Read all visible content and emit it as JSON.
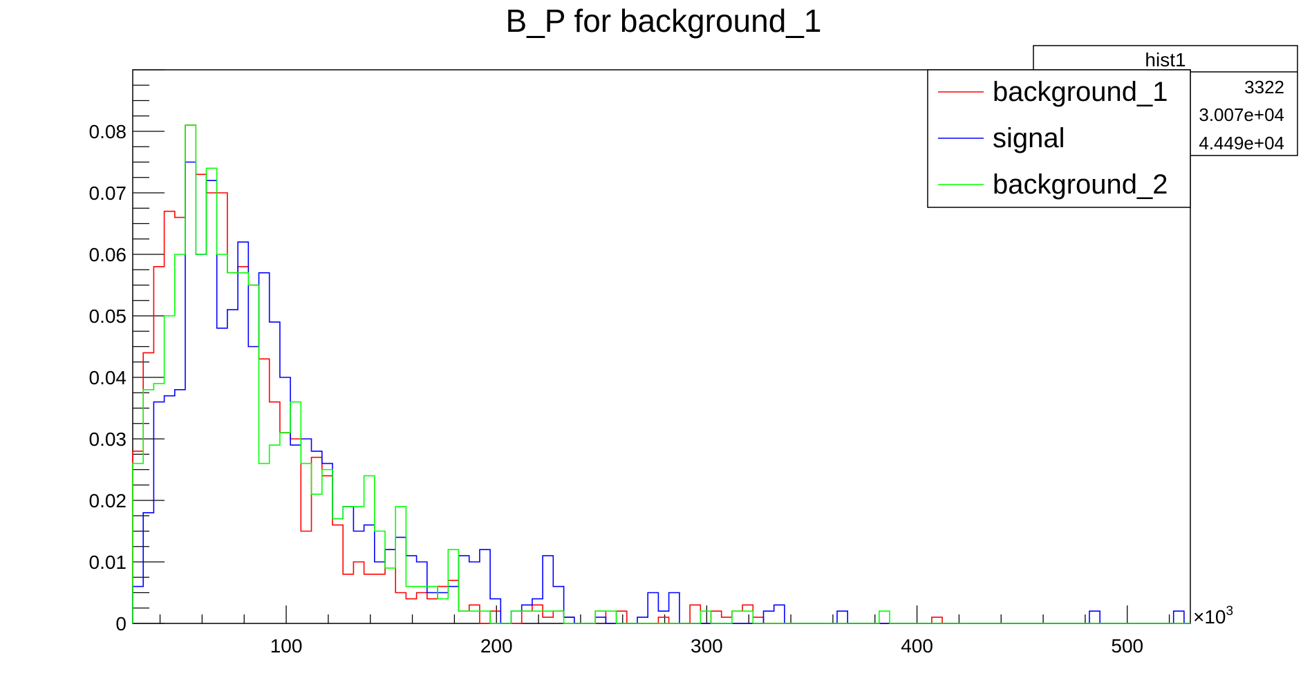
{
  "chart_data": {
    "type": "histogram",
    "title": "B_P for background_1",
    "xlabel": "",
    "ylabel": "",
    "x_exponent_label": "×10",
    "x_exponent_power": "3",
    "xlim": [
      27,
      530
    ],
    "ylim": [
      0,
      0.09
    ],
    "bin_width": 5,
    "x_ticks": [
      100,
      200,
      300,
      400,
      500
    ],
    "y_ticks": [
      0,
      0.01,
      0.02,
      0.03,
      0.04,
      0.05,
      0.06,
      0.07,
      0.08
    ],
    "y_tick_labels": [
      "0",
      "0.01",
      "0.02",
      "0.03",
      "0.04",
      "0.05",
      "0.06",
      "0.07",
      "0.08"
    ],
    "series": [
      {
        "name": "background_1",
        "color": "#ff0000",
        "steps": [
          [
            27,
            0.028
          ],
          [
            32,
            0.044
          ],
          [
            37,
            0.058
          ],
          [
            42,
            0.067
          ],
          [
            47,
            0.066
          ],
          [
            52,
            0.081
          ],
          [
            57,
            0.073
          ],
          [
            62,
            0.07
          ],
          [
            67,
            0.07
          ],
          [
            72,
            0.057
          ],
          [
            77,
            0.058
          ],
          [
            82,
            0.055
          ],
          [
            87,
            0.043
          ],
          [
            92,
            0.036
          ],
          [
            97,
            0.031
          ],
          [
            102,
            0.03
          ],
          [
            107,
            0.015
          ],
          [
            112,
            0.027
          ],
          [
            117,
            0.024
          ],
          [
            122,
            0.016
          ],
          [
            127,
            0.008
          ],
          [
            132,
            0.01
          ],
          [
            137,
            0.008
          ],
          [
            142,
            0.008
          ],
          [
            147,
            0.012
          ],
          [
            152,
            0.005
          ],
          [
            157,
            0.004
          ],
          [
            162,
            0.005
          ],
          [
            167,
            0.004
          ],
          [
            172,
            0.006
          ],
          [
            177,
            0.007
          ],
          [
            182,
            0.002
          ],
          [
            187,
            0.003
          ],
          [
            192,
            0
          ],
          [
            197,
            0.002
          ],
          [
            202,
            0
          ],
          [
            207,
            0
          ],
          [
            212,
            0.002
          ],
          [
            217,
            0.003
          ],
          [
            222,
            0.001
          ],
          [
            227,
            0.002
          ],
          [
            232,
            0.001
          ],
          [
            237,
            0
          ],
          [
            242,
            0
          ],
          [
            247,
            0.002
          ],
          [
            252,
            0
          ],
          [
            257,
            0.002
          ],
          [
            262,
            0
          ],
          [
            267,
            0
          ],
          [
            272,
            0
          ],
          [
            277,
            0.001
          ],
          [
            282,
            0
          ],
          [
            287,
            0
          ],
          [
            292,
            0.003
          ],
          [
            297,
            0
          ],
          [
            302,
            0.002
          ],
          [
            307,
            0.001
          ],
          [
            312,
            0.002
          ],
          [
            317,
            0.003
          ],
          [
            322,
            0.001
          ],
          [
            327,
            0
          ],
          [
            332,
            0
          ],
          [
            407,
            0.001
          ],
          [
            412,
            0
          ],
          [
            530,
            0
          ]
        ]
      },
      {
        "name": "signal",
        "color": "#0000ff",
        "steps": [
          [
            27,
            0.006
          ],
          [
            32,
            0.018
          ],
          [
            37,
            0.036
          ],
          [
            42,
            0.037
          ],
          [
            47,
            0.038
          ],
          [
            52,
            0.075
          ],
          [
            57,
            0.06
          ],
          [
            62,
            0.072
          ],
          [
            67,
            0.048
          ],
          [
            72,
            0.051
          ],
          [
            77,
            0.062
          ],
          [
            82,
            0.045
          ],
          [
            87,
            0.057
          ],
          [
            92,
            0.049
          ],
          [
            97,
            0.04
          ],
          [
            102,
            0.029
          ],
          [
            107,
            0.03
          ],
          [
            112,
            0.028
          ],
          [
            117,
            0.026
          ],
          [
            122,
            0.017
          ],
          [
            127,
            0.019
          ],
          [
            132,
            0.015
          ],
          [
            137,
            0.016
          ],
          [
            142,
            0.01
          ],
          [
            147,
            0.012
          ],
          [
            152,
            0.014
          ],
          [
            157,
            0.011
          ],
          [
            162,
            0.01
          ],
          [
            167,
            0.005
          ],
          [
            172,
            0.005
          ],
          [
            177,
            0.006
          ],
          [
            182,
            0.011
          ],
          [
            187,
            0.01
          ],
          [
            192,
            0.012
          ],
          [
            197,
            0.004
          ],
          [
            202,
            0
          ],
          [
            207,
            0.002
          ],
          [
            212,
            0.003
          ],
          [
            217,
            0.004
          ],
          [
            222,
            0.011
          ],
          [
            227,
            0.006
          ],
          [
            232,
            0.001
          ],
          [
            237,
            0
          ],
          [
            242,
            0
          ],
          [
            247,
            0.001
          ],
          [
            252,
            0
          ],
          [
            257,
            0
          ],
          [
            262,
            0
          ],
          [
            267,
            0.001
          ],
          [
            272,
            0.005
          ],
          [
            277,
            0.002
          ],
          [
            282,
            0.005
          ],
          [
            287,
            0
          ],
          [
            292,
            0
          ],
          [
            297,
            0
          ],
          [
            302,
            0
          ],
          [
            307,
            0
          ],
          [
            312,
            0
          ],
          [
            317,
            0
          ],
          [
            322,
            0
          ],
          [
            327,
            0.002
          ],
          [
            332,
            0.003
          ],
          [
            337,
            0
          ],
          [
            362,
            0.002
          ],
          [
            367,
            0
          ],
          [
            482,
            0.002
          ],
          [
            487,
            0
          ],
          [
            522,
            0.002
          ],
          [
            527,
            0
          ],
          [
            530,
            0
          ]
        ]
      },
      {
        "name": "background_2",
        "color": "#00ff00",
        "steps": [
          [
            27,
            0.026
          ],
          [
            32,
            0.038
          ],
          [
            37,
            0.039
          ],
          [
            42,
            0.05
          ],
          [
            47,
            0.06
          ],
          [
            52,
            0.081
          ],
          [
            57,
            0.06
          ],
          [
            62,
            0.074
          ],
          [
            67,
            0.06
          ],
          [
            72,
            0.057
          ],
          [
            77,
            0.057
          ],
          [
            82,
            0.055
          ],
          [
            87,
            0.026
          ],
          [
            92,
            0.029
          ],
          [
            97,
            0.031
          ],
          [
            102,
            0.036
          ],
          [
            107,
            0.026
          ],
          [
            112,
            0.021
          ],
          [
            117,
            0.025
          ],
          [
            122,
            0.017
          ],
          [
            127,
            0.019
          ],
          [
            132,
            0.019
          ],
          [
            137,
            0.024
          ],
          [
            142,
            0.015
          ],
          [
            147,
            0.009
          ],
          [
            152,
            0.019
          ],
          [
            157,
            0.006
          ],
          [
            162,
            0.006
          ],
          [
            167,
            0.006
          ],
          [
            172,
            0.004
          ],
          [
            177,
            0.012
          ],
          [
            182,
            0.002
          ],
          [
            187,
            0.002
          ],
          [
            192,
            0.002
          ],
          [
            197,
            0
          ],
          [
            202,
            0
          ],
          [
            207,
            0.002
          ],
          [
            212,
            0.002
          ],
          [
            217,
            0.002
          ],
          [
            222,
            0.002
          ],
          [
            227,
            0.002
          ],
          [
            232,
            0
          ],
          [
            237,
            0
          ],
          [
            242,
            0
          ],
          [
            247,
            0.002
          ],
          [
            252,
            0.002
          ],
          [
            257,
            0
          ],
          [
            262,
            0
          ],
          [
            267,
            0
          ],
          [
            272,
            0
          ],
          [
            277,
            0
          ],
          [
            282,
            0
          ],
          [
            287,
            0
          ],
          [
            292,
            0
          ],
          [
            297,
            0.002
          ],
          [
            302,
            0
          ],
          [
            307,
            0
          ],
          [
            312,
            0.002
          ],
          [
            317,
            0.002
          ],
          [
            322,
            0
          ],
          [
            327,
            0
          ],
          [
            382,
            0.002
          ],
          [
            387,
            0
          ],
          [
            530,
            0
          ]
        ]
      }
    ]
  },
  "legend": {
    "entries": [
      {
        "label": "background_1",
        "color": "#ff0000"
      },
      {
        "label": "signal",
        "color": "#0000ff"
      },
      {
        "label": "background_2",
        "color": "#00ff00"
      }
    ]
  },
  "stats_box": {
    "title": "hist1",
    "rows": [
      "3322",
      "3.007e+04",
      "4.449e+04"
    ]
  }
}
